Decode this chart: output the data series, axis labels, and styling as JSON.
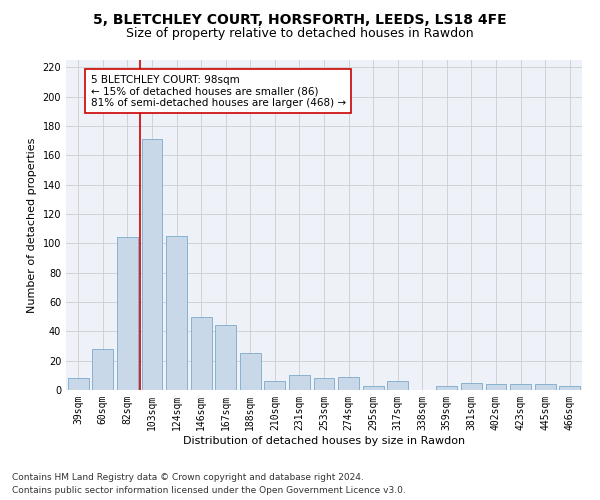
{
  "title_line1": "5, BLETCHLEY COURT, HORSFORTH, LEEDS, LS18 4FE",
  "title_line2": "Size of property relative to detached houses in Rawdon",
  "xlabel": "Distribution of detached houses by size in Rawdon",
  "ylabel": "Number of detached properties",
  "categories": [
    "39sqm",
    "60sqm",
    "82sqm",
    "103sqm",
    "124sqm",
    "146sqm",
    "167sqm",
    "188sqm",
    "210sqm",
    "231sqm",
    "253sqm",
    "274sqm",
    "295sqm",
    "317sqm",
    "338sqm",
    "359sqm",
    "381sqm",
    "402sqm",
    "423sqm",
    "445sqm",
    "466sqm"
  ],
  "values": [
    8,
    28,
    104,
    171,
    105,
    50,
    44,
    25,
    6,
    10,
    8,
    9,
    3,
    6,
    0,
    3,
    5,
    4,
    4,
    4,
    3
  ],
  "bar_color": "#c8d8e8",
  "bar_edge_color": "#7aaac8",
  "vline_x_index": 2,
  "vline_color": "#cc0000",
  "annotation_text": "5 BLETCHLEY COURT: 98sqm\n← 15% of detached houses are smaller (86)\n81% of semi-detached houses are larger (468) →",
  "annotation_box_color": "#ffffff",
  "annotation_box_edge": "#cc0000",
  "ylim": [
    0,
    225
  ],
  "yticks": [
    0,
    20,
    40,
    60,
    80,
    100,
    120,
    140,
    160,
    180,
    200,
    220
  ],
  "grid_color": "#cccccc",
  "background_color": "#eef2f8",
  "footer_line1": "Contains HM Land Registry data © Crown copyright and database right 2024.",
  "footer_line2": "Contains public sector information licensed under the Open Government Licence v3.0.",
  "title_fontsize": 10,
  "subtitle_fontsize": 9,
  "axis_label_fontsize": 8,
  "tick_fontsize": 7,
  "annotation_fontsize": 7.5,
  "footer_fontsize": 6.5
}
